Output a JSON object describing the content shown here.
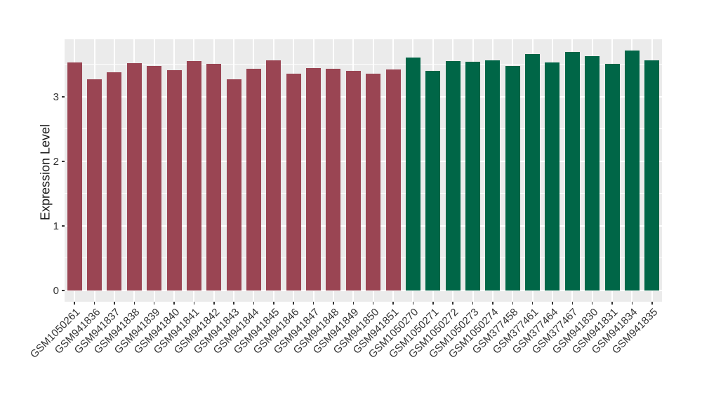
{
  "chart_data": {
    "type": "bar",
    "title": "",
    "xlabel": "",
    "ylabel": "Expression Level",
    "ylim": [
      0,
      3.89
    ],
    "yticks": [
      0,
      1,
      2,
      3
    ],
    "yminor": [
      0.5,
      1.5,
      2.5,
      3.5
    ],
    "grid": "white-on-gray",
    "legend": "none",
    "categories": [
      "GSM1050261",
      "GSM941836",
      "GSM941837",
      "GSM941838",
      "GSM941839",
      "GSM941840",
      "GSM941841",
      "GSM941842",
      "GSM941843",
      "GSM941844",
      "GSM941845",
      "GSM941846",
      "GSM941847",
      "GSM941848",
      "GSM941849",
      "GSM941850",
      "GSM941851",
      "GSM1050270",
      "GSM1050271",
      "GSM1050272",
      "GSM1050273",
      "GSM1050274",
      "GSM377458",
      "GSM377461",
      "GSM377464",
      "GSM377467",
      "GSM941830",
      "GSM941831",
      "GSM941834",
      "GSM941835"
    ],
    "values": [
      3.53,
      3.27,
      3.38,
      3.52,
      3.48,
      3.41,
      3.55,
      3.51,
      3.27,
      3.43,
      3.56,
      3.36,
      3.45,
      3.44,
      3.4,
      3.36,
      3.42,
      3.61,
      3.4,
      3.55,
      3.54,
      3.56,
      3.48,
      3.66,
      3.53,
      3.7,
      3.63,
      3.51,
      3.72,
      3.56
    ],
    "groups": [
      "A",
      "A",
      "A",
      "A",
      "A",
      "A",
      "A",
      "A",
      "A",
      "A",
      "A",
      "A",
      "A",
      "A",
      "A",
      "A",
      "A",
      "B",
      "B",
      "B",
      "B",
      "B",
      "B",
      "B",
      "B",
      "B",
      "B",
      "B",
      "B",
      "B"
    ],
    "group_colors": {
      "A": "#9A4553",
      "B": "#006647"
    },
    "panel_background": "#EBEBEB",
    "gridline_color": "#FFFFFF",
    "axis_text_color": "#333333"
  }
}
